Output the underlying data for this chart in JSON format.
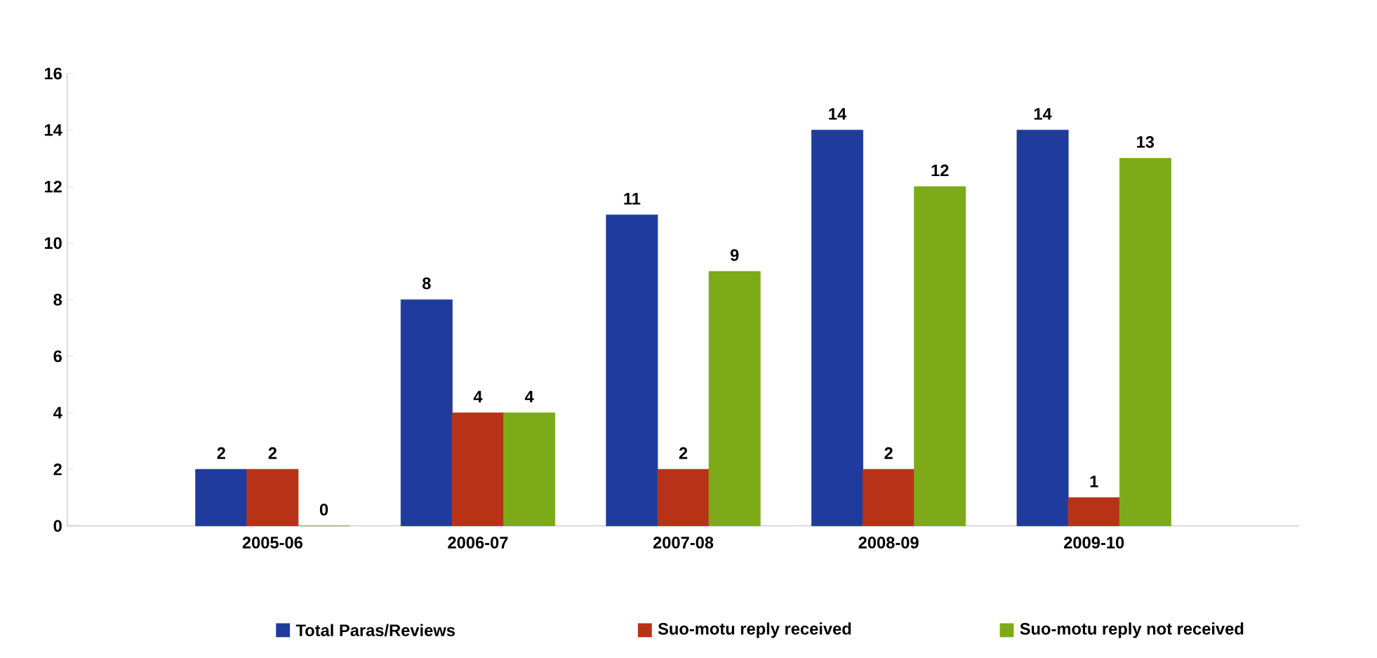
{
  "chart_data": {
    "type": "bar",
    "categories": [
      "2005-06",
      "2006-07",
      "2007-08",
      "2008-09",
      "2009-10"
    ],
    "series": [
      {
        "name": "Total Paras/Reviews",
        "color": "#1f3b9e",
        "values": [
          2,
          8,
          11,
          14,
          14
        ]
      },
      {
        "name": "Suo-motu reply received",
        "color": "#b83218",
        "values": [
          2,
          4,
          2,
          2,
          1
        ]
      },
      {
        "name": "Suo-motu reply not received",
        "color": "#7caa18",
        "values": [
          0,
          4,
          9,
          12,
          13
        ]
      }
    ],
    "ylim": [
      0,
      16
    ],
    "yticks": [
      0,
      2,
      4,
      6,
      8,
      10,
      12,
      14,
      16
    ],
    "data_labels": true,
    "grid": false,
    "legend": "bottom"
  }
}
